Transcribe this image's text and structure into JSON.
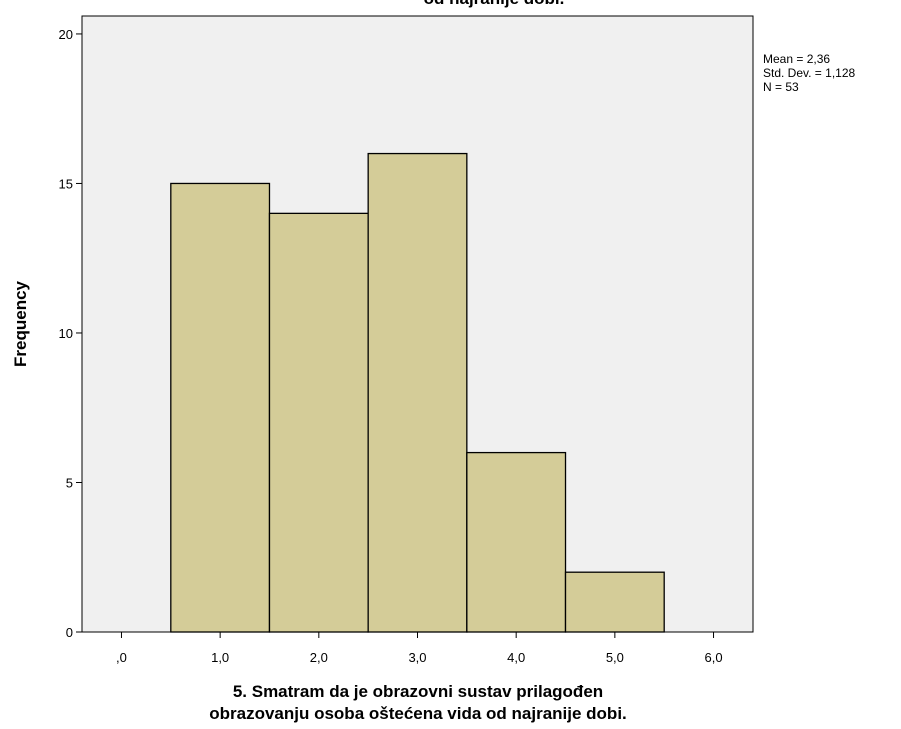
{
  "chart_data": {
    "type": "histogram",
    "title_fragment": "od najranije dobi.",
    "xlabel_lines": [
      "5. Smatram da je obrazovni sustav prilagođen",
      "obrazovanju osoba oštećena vida od najranije dobi."
    ],
    "ylabel": "Frequency",
    "bins": [
      {
        "from": 0.5,
        "to": 1.5,
        "count": 15
      },
      {
        "from": 1.5,
        "to": 2.5,
        "count": 14
      },
      {
        "from": 2.5,
        "to": 3.5,
        "count": 16
      },
      {
        "from": 3.5,
        "to": 4.5,
        "count": 6
      },
      {
        "from": 4.5,
        "to": 5.5,
        "count": 2
      }
    ],
    "xlim": [
      -0.4,
      6.4
    ],
    "ylim": [
      0,
      20.6
    ],
    "x_ticks": [
      0,
      1,
      2,
      3,
      4,
      5,
      6
    ],
    "x_tick_labels": [
      ",0",
      "1,0",
      "2,0",
      "3,0",
      "4,0",
      "5,0",
      "6,0"
    ],
    "y_ticks": [
      0,
      5,
      10,
      15,
      20
    ],
    "y_tick_labels": [
      "0",
      "5",
      "10",
      "15",
      "20"
    ],
    "stats": [
      "Mean = 2,36",
      "Std. Dev. = 1,128",
      "N = 53"
    ],
    "colors": {
      "bar_fill": "#d4cc98",
      "bar_stroke": "#000000",
      "plot_background": "#f0f0f0"
    }
  }
}
